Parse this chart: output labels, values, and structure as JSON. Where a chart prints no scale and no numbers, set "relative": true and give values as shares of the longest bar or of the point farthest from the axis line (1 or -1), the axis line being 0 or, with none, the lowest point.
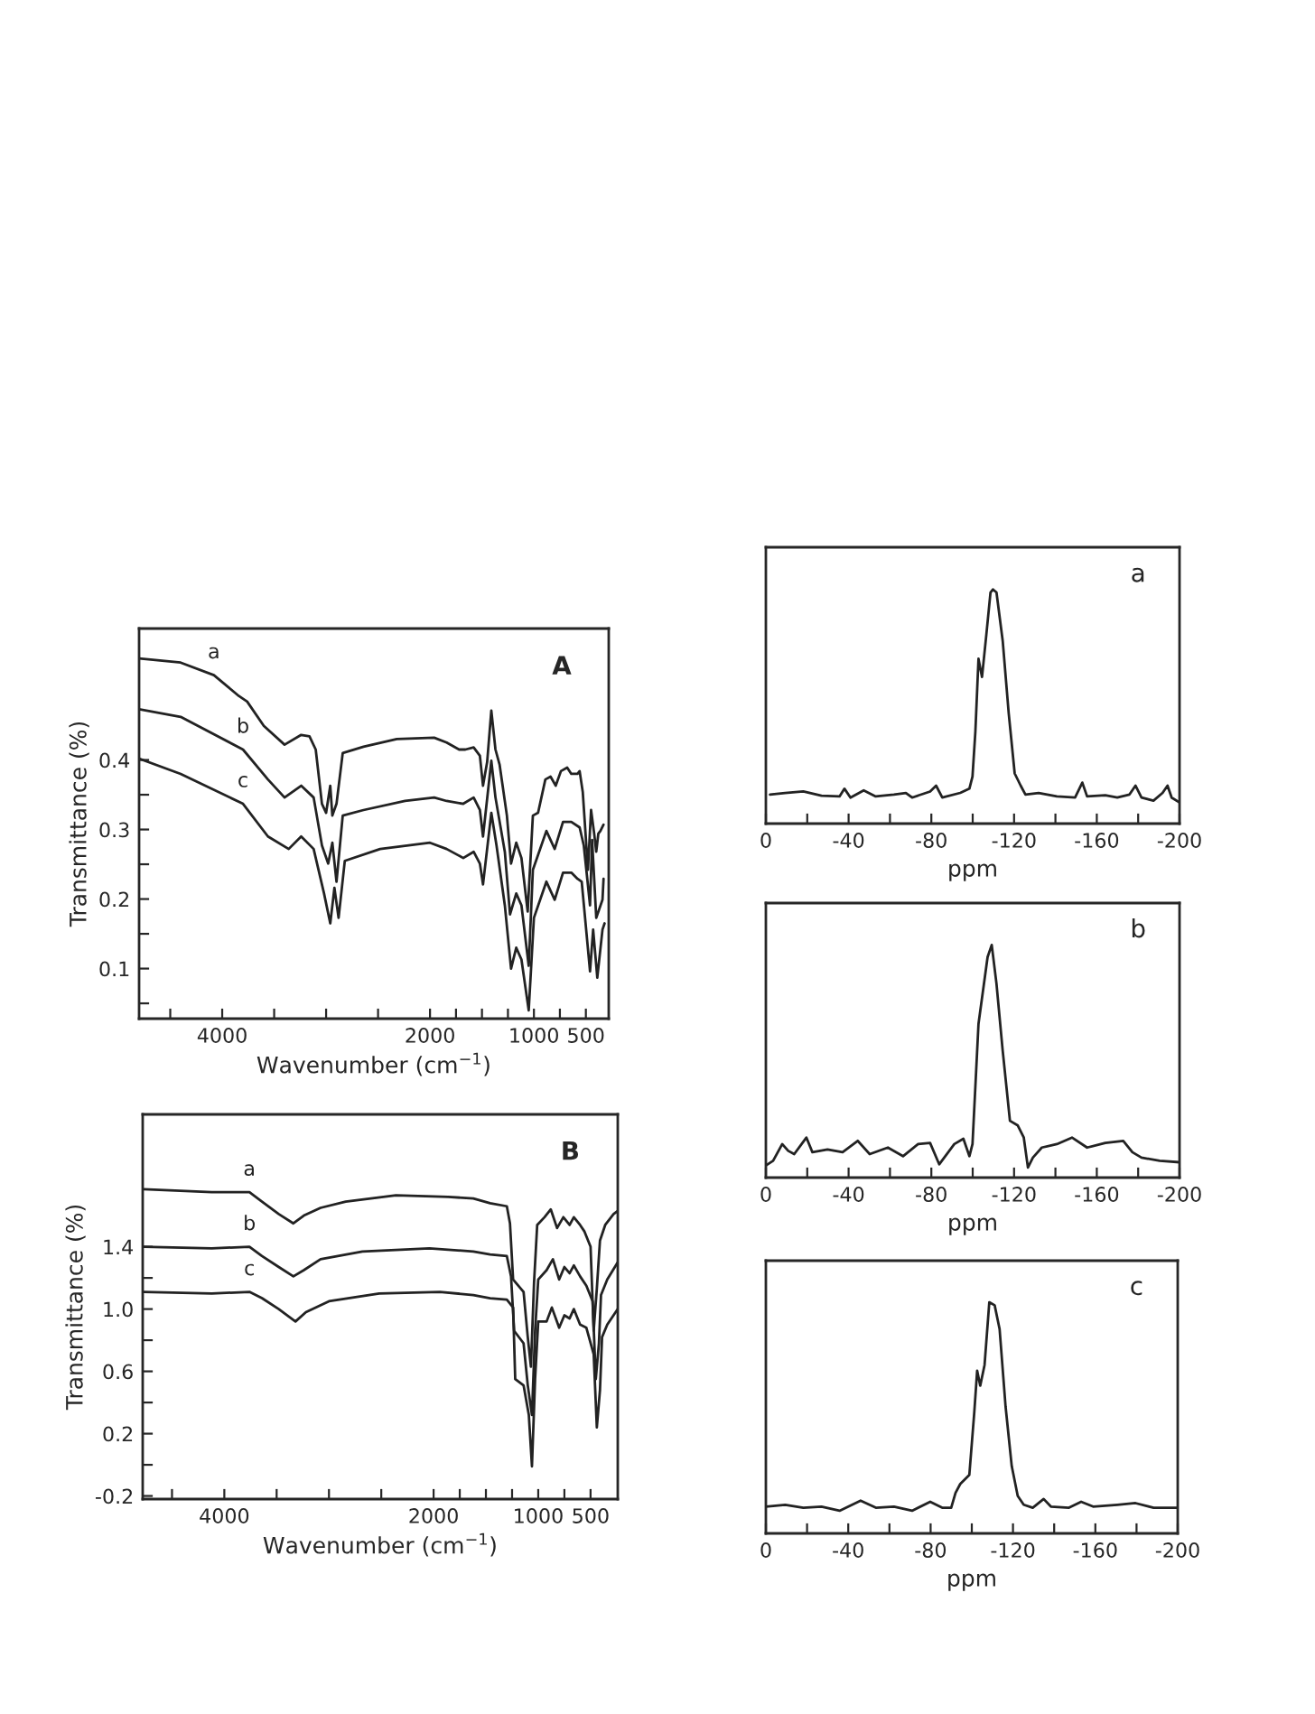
{
  "chart_data": [
    {
      "type": "line",
      "title": "A",
      "xlabel": "Wavenumber (cm$^{−1}$)",
      "ylabel": "Transmittance (%)",
      "xlim": [
        4800,
        280
      ],
      "ylim": [
        0.028,
        0.589
      ],
      "xticks": [
        {
          "value": 4500,
          "label": null
        },
        4000,
        {
          "value": 3500,
          "label": null
        },
        {
          "value": 3000,
          "label": null
        },
        {
          "value": 2500,
          "label": null
        },
        2000,
        {
          "value": 1750,
          "label": null
        },
        {
          "value": 1500,
          "label": null
        },
        {
          "value": 1250,
          "label": null
        },
        1000,
        {
          "value": 750,
          "label": null
        },
        500
      ],
      "yticks": [
        {
          "value": 0.05,
          "label": null
        },
        0.1,
        {
          "value": 0.15,
          "label": null
        },
        0.2,
        {
          "value": 0.25,
          "label": null
        },
        0.3,
        {
          "value": 0.35,
          "label": null
        },
        0.4
      ],
      "grid": false,
      "legend": false,
      "marker": "none",
      "line_style": "solid",
      "series": [
        {
          "name": "a",
          "color": "#222222",
          "x": [
            4800,
            4400,
            4080,
            3840,
            3760,
            3600,
            3400,
            3240,
            3160,
            3100,
            3040,
            3000,
            2960,
            2940,
            2900,
            2840,
            2640,
            2320,
            1960,
            1840,
            1720,
            1660,
            1580,
            1520,
            1490,
            1450,
            1410,
            1370,
            1330,
            1260,
            1220,
            1170,
            1120,
            1060,
            1010,
            960,
            890,
            840,
            790,
            740,
            680,
            640,
            580,
            560,
            530,
            480,
            450,
            420,
            400,
            380,
            360,
            330
          ],
          "values": [
            0.546,
            0.54,
            0.522,
            0.492,
            0.484,
            0.449,
            0.422,
            0.436,
            0.434,
            0.415,
            0.337,
            0.324,
            0.363,
            0.32,
            0.337,
            0.41,
            0.419,
            0.43,
            0.432,
            0.425,
            0.415,
            0.415,
            0.418,
            0.406,
            0.363,
            0.397,
            0.471,
            0.415,
            0.393,
            0.32,
            0.251,
            0.281,
            0.259,
            0.182,
            0.32,
            0.324,
            0.372,
            0.376,
            0.363,
            0.384,
            0.389,
            0.38,
            0.38,
            0.384,
            0.354,
            0.242,
            0.328,
            0.294,
            0.268,
            0.294,
            0.298,
            0.307
          ]
        },
        {
          "name": "b",
          "color": "#222222",
          "x": [
            4800,
            4400,
            3800,
            3560,
            3400,
            3240,
            3120,
            3040,
            2980,
            2940,
            2900,
            2840,
            2640,
            2240,
            1960,
            1840,
            1680,
            1580,
            1520,
            1490,
            1410,
            1370,
            1280,
            1230,
            1170,
            1120,
            1050,
            1010,
            880,
            800,
            720,
            640,
            560,
            520,
            460,
            440,
            400,
            340,
            330
          ],
          "values": [
            0.473,
            0.462,
            0.415,
            0.372,
            0.346,
            0.363,
            0.346,
            0.277,
            0.251,
            0.281,
            0.225,
            0.32,
            0.328,
            0.341,
            0.346,
            0.341,
            0.337,
            0.346,
            0.328,
            0.29,
            0.399,
            0.346,
            0.268,
            0.178,
            0.208,
            0.191,
            0.104,
            0.242,
            0.298,
            0.272,
            0.311,
            0.311,
            0.303,
            0.277,
            0.191,
            0.285,
            0.173,
            0.199,
            0.229
          ]
        },
        {
          "name": "c",
          "color": "#222222",
          "x": [
            4800,
            4400,
            3800,
            3560,
            3360,
            3240,
            3120,
            3020,
            2960,
            2920,
            2880,
            2820,
            2480,
            2000,
            1840,
            1680,
            1580,
            1520,
            1490,
            1410,
            1360,
            1280,
            1220,
            1170,
            1120,
            1050,
            1000,
            880,
            800,
            720,
            640,
            580,
            540,
            460,
            430,
            390,
            340,
            320
          ],
          "values": [
            0.402,
            0.38,
            0.337,
            0.29,
            0.272,
            0.29,
            0.272,
            0.208,
            0.165,
            0.216,
            0.173,
            0.255,
            0.272,
            0.281,
            0.272,
            0.259,
            0.268,
            0.251,
            0.221,
            0.324,
            0.277,
            0.191,
            0.1,
            0.13,
            0.113,
            0.04,
            0.173,
            0.225,
            0.199,
            0.238,
            0.238,
            0.229,
            0.225,
            0.096,
            0.156,
            0.087,
            0.156,
            0.165
          ]
        }
      ]
    },
    {
      "type": "line",
      "title": "B",
      "xlabel": "Wavenumber (cm$^{−1}$)",
      "ylabel": "Transmittance (%)",
      "xlim": [
        4780,
        240
      ],
      "ylim": [
        -0.22,
        2.25
      ],
      "xticks": [
        {
          "value": 4500,
          "label": null
        },
        4000,
        {
          "value": 3500,
          "label": null
        },
        {
          "value": 3000,
          "label": null
        },
        {
          "value": 2500,
          "label": null
        },
        2000,
        {
          "value": 1750,
          "label": null
        },
        {
          "value": 1500,
          "label": null
        },
        {
          "value": 1250,
          "label": null
        },
        1000,
        {
          "value": 750,
          "label": null
        },
        500
      ],
      "yticks": [
        -0.2,
        {
          "value": 0,
          "label": null
        },
        0.2,
        {
          "value": 0.4,
          "label": null
        },
        0.6,
        {
          "value": 0.8,
          "label": null
        },
        {
          "value": 1.0,
          "label": "1.0"
        },
        {
          "value": 1.2,
          "label": null
        },
        1.4
      ],
      "grid": false,
      "legend": false,
      "marker": "none",
      "line_style": "solid",
      "series": [
        {
          "name": "a",
          "color": "#222222",
          "x": [
            4770,
            4120,
            3760,
            3640,
            3480,
            3340,
            3240,
            3080,
            2840,
            2360,
            1860,
            1620,
            1460,
            1300,
            1270,
            1240,
            1140,
            1100,
            1070,
            1040,
            1010,
            940,
            880,
            820,
            760,
            700,
            660,
            600,
            560,
            500,
            470,
            440,
            410,
            360,
            280,
            240
          ],
          "values": [
            1.77,
            1.75,
            1.75,
            1.69,
            1.61,
            1.55,
            1.6,
            1.65,
            1.69,
            1.73,
            1.72,
            1.71,
            1.68,
            1.66,
            1.55,
            1.19,
            1.11,
            0.82,
            0.63,
            1.17,
            1.54,
            1.59,
            1.64,
            1.52,
            1.59,
            1.54,
            1.59,
            1.54,
            1.5,
            1.4,
            0.86,
            1.13,
            1.44,
            1.54,
            1.61,
            1.63
          ]
        },
        {
          "name": "b",
          "color": "#222222",
          "x": [
            4770,
            4120,
            3760,
            3640,
            3480,
            3340,
            3240,
            3080,
            2680,
            2040,
            1620,
            1460,
            1300,
            1260,
            1230,
            1140,
            1100,
            1060,
            1030,
            1000,
            920,
            860,
            800,
            750,
            700,
            660,
            600,
            540,
            480,
            450,
            420,
            400,
            340,
            240
          ],
          "values": [
            1.4,
            1.39,
            1.4,
            1.34,
            1.27,
            1.21,
            1.25,
            1.32,
            1.37,
            1.39,
            1.37,
            1.35,
            1.34,
            1.21,
            0.86,
            0.78,
            0.51,
            0.32,
            0.86,
            1.19,
            1.25,
            1.32,
            1.19,
            1.27,
            1.23,
            1.28,
            1.21,
            1.15,
            1.05,
            0.55,
            0.78,
            1.09,
            1.19,
            1.3
          ]
        },
        {
          "name": "c",
          "color": "#222222",
          "x": [
            4770,
            4120,
            3760,
            3640,
            3480,
            3320,
            3220,
            3000,
            2520,
            1940,
            1620,
            1460,
            1300,
            1240,
            1220,
            1140,
            1090,
            1060,
            1030,
            1000,
            920,
            870,
            800,
            750,
            700,
            660,
            600,
            540,
            470,
            440,
            410,
            390,
            340,
            240
          ],
          "values": [
            1.11,
            1.1,
            1.11,
            1.07,
            1.0,
            0.92,
            0.98,
            1.05,
            1.1,
            1.11,
            1.09,
            1.07,
            1.06,
            1.01,
            0.55,
            0.51,
            0.32,
            -0.01,
            0.55,
            0.92,
            0.92,
            1.01,
            0.88,
            0.96,
            0.94,
            1.0,
            0.9,
            0.88,
            0.71,
            0.24,
            0.48,
            0.82,
            0.9,
            1.0
          ]
        }
      ]
    },
    {
      "type": "line",
      "title": "a",
      "xlabel": "ppm",
      "relative": true,
      "xlim": [
        0,
        -200
      ],
      "xticks": [
        0,
        {
          "value": -20,
          "label": null
        },
        -40,
        {
          "value": -60,
          "label": null
        },
        -80,
        {
          "value": -100,
          "label": null
        },
        -120,
        {
          "value": -140,
          "label": null
        },
        -160,
        {
          "value": -180,
          "label": null
        },
        -200
      ],
      "grid": false,
      "legend": false,
      "marker": "none",
      "line_style": "solid",
      "series": [
        {
          "color": "#222222",
          "x": [
            -2,
            -9.3,
            -18.1,
            -26.9,
            -35.6,
            -38,
            -40.9,
            -47.3,
            -53.1,
            -61.9,
            -67.7,
            -70.7,
            -79.4,
            -82.3,
            -85.3,
            -94,
            -98.4,
            -99.9,
            -101.3,
            -102.8,
            -104.5,
            -106.6,
            -108.6,
            -109.8,
            -111.5,
            -114.5,
            -117.4,
            -120.3,
            -123.2,
            -125.5,
            -131.9,
            -140.7,
            -149.5,
            -153,
            -155.3,
            -164.1,
            -169.9,
            -175.8,
            -178.7,
            -181.6,
            -187.4,
            -191.8,
            -194.2,
            -196.2,
            -200
          ],
          "values": [
            0.124,
            0.131,
            0.137,
            0.119,
            0.116,
            0.149,
            0.111,
            0.142,
            0.116,
            0.124,
            0.131,
            0.111,
            0.137,
            0.162,
            0.111,
            0.131,
            0.149,
            0.201,
            0.394,
            0.704,
            0.626,
            0.807,
            0.987,
            1,
            0.987,
            0.781,
            0.472,
            0.214,
            0.162,
            0.124,
            0.131,
            0.116,
            0.111,
            0.175,
            0.116,
            0.121,
            0.111,
            0.124,
            0.162,
            0.111,
            0.098,
            0.131,
            0.162,
            0.111,
            0.09
          ]
        }
      ]
    },
    {
      "type": "line",
      "title": "b",
      "xlabel": "ppm",
      "relative": true,
      "xlim": [
        0,
        -200
      ],
      "xticks": [
        0,
        {
          "value": -20,
          "label": null
        },
        -40,
        {
          "value": -60,
          "label": null
        },
        -80,
        {
          "value": -100,
          "label": null
        },
        -120,
        {
          "value": -140,
          "label": null
        },
        -160,
        {
          "value": -180,
          "label": null
        },
        -200
      ],
      "grid": false,
      "legend": false,
      "marker": "none",
      "line_style": "solid",
      "series": [
        {
          "color": "#222222",
          "x": [
            0,
            -3.5,
            -7.9,
            -10.8,
            -13.7,
            -19.6,
            -22.5,
            -29.8,
            -37.1,
            -44.4,
            -50.2,
            -59,
            -66.3,
            -73.6,
            -79.4,
            -83.8,
            -91.1,
            -95.5,
            -98.4,
            -99.9,
            -102.8,
            -107.2,
            -109.2,
            -111.5,
            -114.5,
            -118,
            -121.8,
            -124.7,
            -126.7,
            -129.1,
            -133.4,
            -140.7,
            -148,
            -155.3,
            -164.1,
            -172.8,
            -177.2,
            -181.6,
            -190.4,
            -200
          ],
          "values": [
            0.052,
            0.072,
            0.144,
            0.115,
            0.101,
            0.172,
            0.109,
            0.121,
            0.109,
            0.158,
            0.101,
            0.129,
            0.092,
            0.144,
            0.149,
            0.057,
            0.144,
            0.167,
            0.092,
            0.144,
            0.661,
            0.948,
            1,
            0.833,
            0.546,
            0.244,
            0.224,
            0.172,
            0.043,
            0.086,
            0.129,
            0.144,
            0.172,
            0.129,
            0.149,
            0.158,
            0.109,
            0.086,
            0.072,
            0.066
          ]
        }
      ]
    },
    {
      "type": "line",
      "title": "c",
      "xlabel": "ppm",
      "relative": true,
      "xlim": [
        0,
        -200
      ],
      "xticks": [
        0,
        {
          "value": -20,
          "label": null
        },
        -40,
        {
          "value": -60,
          "label": null
        },
        -80,
        {
          "value": -100,
          "label": null
        },
        -120,
        {
          "value": -140,
          "label": null
        },
        -160,
        {
          "value": -180,
          "label": null
        },
        -200
      ],
      "grid": false,
      "legend": false,
      "marker": "none",
      "line_style": "solid",
      "series": [
        {
          "color": "#222222",
          "x": [
            0,
            -9.4,
            -18.2,
            -27,
            -35.8,
            -46,
            -53.4,
            -62.2,
            -71,
            -79.8,
            -85.6,
            -90,
            -92.1,
            -94.4,
            -98.8,
            -101.2,
            -102.6,
            -104.1,
            -106.2,
            -108.5,
            -111.1,
            -113.5,
            -116.4,
            -119.4,
            -122.3,
            -125.2,
            -129.6,
            -134.9,
            -138.4,
            -147.2,
            -153.1,
            -158.9,
            -170.7,
            -179.5,
            -188.3,
            -200
          ],
          "values": [
            0.116,
            0.124,
            0.111,
            0.116,
            0.098,
            0.142,
            0.111,
            0.116,
            0.098,
            0.137,
            0.111,
            0.111,
            0.175,
            0.214,
            0.253,
            0.523,
            0.704,
            0.639,
            0.729,
            1,
            0.987,
            0.884,
            0.549,
            0.291,
            0.162,
            0.124,
            0.111,
            0.149,
            0.116,
            0.111,
            0.137,
            0.116,
            0.124,
            0.131,
            0.111,
            0.111
          ]
        }
      ]
    }
  ]
}
